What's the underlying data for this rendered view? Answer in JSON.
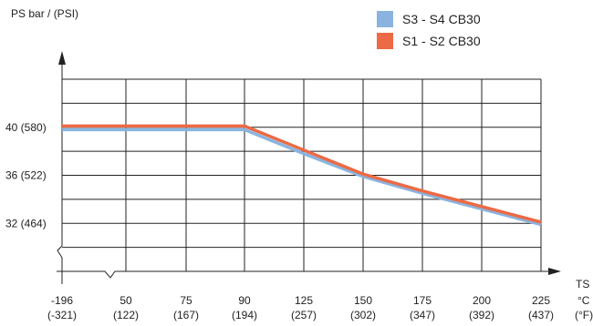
{
  "chart_data": {
    "type": "line",
    "ylabel": "PS bar / (PSI)",
    "xlabel": "TS",
    "x_units": [
      "°C",
      "(°F)"
    ],
    "categories": [
      "-196",
      "50",
      "75",
      "90",
      "125",
      "150",
      "175",
      "200",
      "225"
    ],
    "categories_f": [
      "(-321)",
      "(122)",
      "(167)",
      "(194)",
      "(257)",
      "(302)",
      "(347)",
      "(392)",
      "(437)"
    ],
    "y_ticks": [
      {
        "value": 40,
        "label": "40 (580)"
      },
      {
        "value": 36,
        "label": "36 (522)"
      },
      {
        "value": 32,
        "label": "32 (464)"
      }
    ],
    "ylim": [
      28,
      44
    ],
    "axis_breaks": [
      "x",
      "y"
    ],
    "grid": true,
    "legend_position": "top-right",
    "series": [
      {
        "name": "S3 - S4 CB30",
        "color": "#8ab4df",
        "values": [
          39.8,
          39.8,
          39.8,
          39.8,
          37.8,
          35.9,
          34.5,
          33.2,
          31.9
        ]
      },
      {
        "name": "S1 - S2 CB30",
        "color": "#ec6a45",
        "values": [
          40.1,
          40.1,
          40.1,
          40.1,
          38.1,
          36.1,
          34.7,
          33.4,
          32.1
        ]
      }
    ]
  }
}
